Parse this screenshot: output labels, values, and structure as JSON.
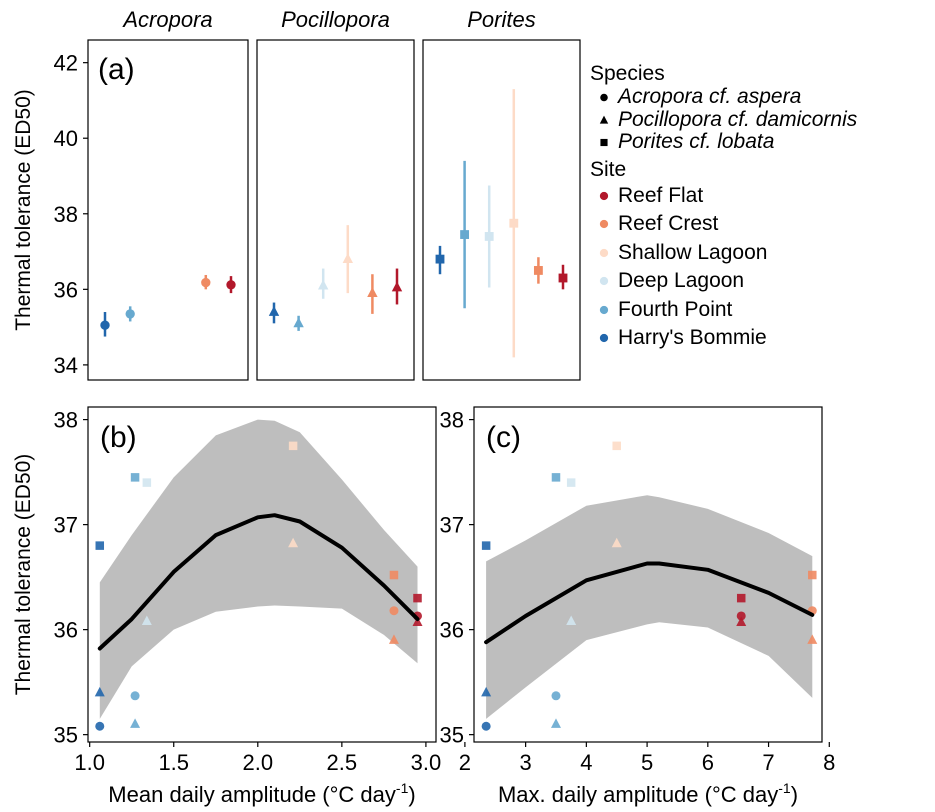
{
  "chart_data": [
    {
      "panel": "(a)",
      "type": "scatter",
      "facets": [
        "Acropora",
        "Pocillopora",
        "Porites"
      ],
      "ylabel": "Thermal tolerance (ED50)",
      "ylim": [
        33.6,
        42.6
      ],
      "yticks": [
        34,
        36,
        38,
        40,
        42
      ],
      "x_order": [
        "Harry's Bommie",
        "Fourth Point",
        "Deep Lagoon",
        "Shallow Lagoon",
        "Reef Crest",
        "Reef Flat"
      ],
      "series": [
        {
          "facet": "Acropora",
          "shape": "circle",
          "points": [
            {
              "site": "Harry's Bommie",
              "y": 35.05,
              "low": 34.75,
              "high": 35.4
            },
            {
              "site": "Fourth Point",
              "y": 35.35,
              "low": 35.15,
              "high": 35.55
            },
            {
              "site": "Reef Crest",
              "y": 36.18,
              "low": 36.0,
              "high": 36.38
            },
            {
              "site": "Reef Flat",
              "y": 36.12,
              "low": 35.9,
              "high": 36.35
            }
          ]
        },
        {
          "facet": "Pocillopora",
          "shape": "triangle",
          "points": [
            {
              "site": "Harry's Bommie",
              "y": 35.4,
              "low": 35.1,
              "high": 35.65
            },
            {
              "site": "Fourth Point",
              "y": 35.1,
              "low": 34.9,
              "high": 35.3
            },
            {
              "site": "Deep Lagoon",
              "y": 36.1,
              "low": 35.75,
              "high": 36.55
            },
            {
              "site": "Shallow Lagoon",
              "y": 36.8,
              "low": 35.9,
              "high": 37.7
            },
            {
              "site": "Reef Crest",
              "y": 35.9,
              "low": 35.35,
              "high": 36.4
            },
            {
              "site": "Reef Flat",
              "y": 36.05,
              "low": 35.6,
              "high": 36.55
            }
          ]
        },
        {
          "facet": "Porites",
          "shape": "square",
          "points": [
            {
              "site": "Harry's Bommie",
              "y": 36.8,
              "low": 36.4,
              "high": 37.15
            },
            {
              "site": "Fourth Point",
              "y": 37.45,
              "low": 35.5,
              "high": 39.4
            },
            {
              "site": "Deep Lagoon",
              "y": 37.4,
              "low": 36.05,
              "high": 38.75
            },
            {
              "site": "Shallow Lagoon",
              "y": 37.75,
              "low": 34.2,
              "high": 41.3
            },
            {
              "site": "Reef Crest",
              "y": 36.5,
              "low": 36.15,
              "high": 36.85
            },
            {
              "site": "Reef Flat",
              "y": 36.3,
              "low": 36.0,
              "high": 36.65
            }
          ]
        }
      ]
    },
    {
      "panel": "(b)",
      "type": "scatter",
      "xlabel_pre": "Mean daily amplitude (°C day",
      "xlabel_sup": "-1",
      "xlabel_post": ")",
      "ylabel": "Thermal tolerance (ED50)",
      "xlim": [
        0.99,
        3.06
      ],
      "ylim": [
        34.93,
        38.12
      ],
      "xticks": [
        1.0,
        1.5,
        2.0,
        2.5,
        3.0
      ],
      "xtick_labels": [
        "1.0",
        "1.5",
        "2.0",
        "2.5",
        "3.0"
      ],
      "yticks": [
        35,
        36,
        37,
        38
      ],
      "points": [
        {
          "x": 1.06,
          "y": 35.08,
          "site": "Harry's Bommie",
          "shape": "circle"
        },
        {
          "x": 1.06,
          "y": 35.4,
          "site": "Harry's Bommie",
          "shape": "triangle"
        },
        {
          "x": 1.06,
          "y": 36.8,
          "site": "Harry's Bommie",
          "shape": "square"
        },
        {
          "x": 1.27,
          "y": 35.37,
          "site": "Fourth Point",
          "shape": "circle"
        },
        {
          "x": 1.27,
          "y": 35.1,
          "site": "Fourth Point",
          "shape": "triangle"
        },
        {
          "x": 1.27,
          "y": 37.45,
          "site": "Fourth Point",
          "shape": "square"
        },
        {
          "x": 1.34,
          "y": 36.08,
          "site": "Deep Lagoon",
          "shape": "triangle"
        },
        {
          "x": 1.34,
          "y": 37.4,
          "site": "Deep Lagoon",
          "shape": "square"
        },
        {
          "x": 2.21,
          "y": 36.82,
          "site": "Shallow Lagoon",
          "shape": "triangle"
        },
        {
          "x": 2.21,
          "y": 37.75,
          "site": "Shallow Lagoon",
          "shape": "square"
        },
        {
          "x": 2.81,
          "y": 36.18,
          "site": "Reef Crest",
          "shape": "circle"
        },
        {
          "x": 2.81,
          "y": 35.9,
          "site": "Reef Crest",
          "shape": "triangle"
        },
        {
          "x": 2.81,
          "y": 36.52,
          "site": "Reef Crest",
          "shape": "square"
        },
        {
          "x": 2.95,
          "y": 36.13,
          "site": "Reef Flat",
          "shape": "circle"
        },
        {
          "x": 2.95,
          "y": 36.07,
          "site": "Reef Flat",
          "shape": "triangle"
        },
        {
          "x": 2.95,
          "y": 36.3,
          "site": "Reef Flat",
          "shape": "square"
        }
      ],
      "fit": {
        "x": [
          1.06,
          1.25,
          1.5,
          1.75,
          2.0,
          2.1,
          2.25,
          2.5,
          2.75,
          2.95
        ],
        "y": [
          35.82,
          36.1,
          36.55,
          36.9,
          37.07,
          37.09,
          37.03,
          36.78,
          36.42,
          36.1
        ],
        "upper": [
          36.45,
          36.9,
          37.45,
          37.85,
          38.0,
          37.99,
          37.88,
          37.43,
          36.95,
          36.6
        ],
        "lower": [
          35.15,
          35.65,
          36.0,
          36.17,
          36.22,
          36.23,
          36.22,
          36.2,
          35.95,
          35.68
        ]
      }
    },
    {
      "panel": "(c)",
      "type": "scatter",
      "xlabel_pre": "Max. daily amplitude (°C day",
      "xlabel_sup": "-1",
      "xlabel_post": ")",
      "xlim": [
        2.15,
        7.88
      ],
      "ylim": [
        34.93,
        38.12
      ],
      "xticks": [
        2,
        3,
        4,
        5,
        6,
        7,
        8
      ],
      "xtick_labels": [
        "2",
        "3",
        "4",
        "5",
        "6",
        "7",
        "8"
      ],
      "yticks": [
        35,
        36,
        37,
        38
      ],
      "points": [
        {
          "x": 2.35,
          "y": 35.08,
          "site": "Harry's Bommie",
          "shape": "circle"
        },
        {
          "x": 2.35,
          "y": 35.4,
          "site": "Harry's Bommie",
          "shape": "triangle"
        },
        {
          "x": 2.35,
          "y": 36.8,
          "site": "Harry's Bommie",
          "shape": "square"
        },
        {
          "x": 3.5,
          "y": 35.37,
          "site": "Fourth Point",
          "shape": "circle"
        },
        {
          "x": 3.5,
          "y": 35.1,
          "site": "Fourth Point",
          "shape": "triangle"
        },
        {
          "x": 3.5,
          "y": 37.45,
          "site": "Fourth Point",
          "shape": "square"
        },
        {
          "x": 3.75,
          "y": 36.08,
          "site": "Deep Lagoon",
          "shape": "triangle"
        },
        {
          "x": 3.75,
          "y": 37.4,
          "site": "Deep Lagoon",
          "shape": "square"
        },
        {
          "x": 4.5,
          "y": 36.82,
          "site": "Shallow Lagoon",
          "shape": "triangle"
        },
        {
          "x": 4.5,
          "y": 37.75,
          "site": "Shallow Lagoon",
          "shape": "square"
        },
        {
          "x": 6.55,
          "y": 36.13,
          "site": "Reef Flat",
          "shape": "circle"
        },
        {
          "x": 6.55,
          "y": 36.07,
          "site": "Reef Flat",
          "shape": "triangle"
        },
        {
          "x": 6.55,
          "y": 36.3,
          "site": "Reef Flat",
          "shape": "square"
        },
        {
          "x": 7.72,
          "y": 36.18,
          "site": "Reef Crest",
          "shape": "circle"
        },
        {
          "x": 7.72,
          "y": 35.9,
          "site": "Reef Crest",
          "shape": "triangle"
        },
        {
          "x": 7.72,
          "y": 36.52,
          "site": "Reef Crest",
          "shape": "square"
        }
      ],
      "fit": {
        "x": [
          2.35,
          3.0,
          4.0,
          5.0,
          5.2,
          6.0,
          7.0,
          7.72
        ],
        "y": [
          35.88,
          36.13,
          36.47,
          36.63,
          36.63,
          36.57,
          36.35,
          36.14
        ],
        "upper": [
          36.65,
          36.85,
          37.18,
          37.28,
          37.26,
          37.15,
          36.92,
          36.7
        ],
        "lower": [
          35.15,
          35.45,
          35.9,
          36.05,
          36.07,
          36.02,
          35.75,
          35.35
        ]
      }
    }
  ],
  "legend": {
    "species_title": "Species",
    "species": [
      {
        "label": "Acropora cf. aspera",
        "shape": "circle"
      },
      {
        "label": "Pocillopora cf. damicornis",
        "shape": "triangle"
      },
      {
        "label": "Porites cf. lobata",
        "shape": "square"
      }
    ],
    "site_title": "Site",
    "sites": [
      {
        "label": "Reef Flat",
        "color": "#b2182b"
      },
      {
        "label": "Reef Crest",
        "color": "#ef8a62"
      },
      {
        "label": "Shallow Lagoon",
        "color": "#fddbc7"
      },
      {
        "label": "Deep Lagoon",
        "color": "#d1e5f0"
      },
      {
        "label": "Fourth Point",
        "color": "#67a9cf"
      },
      {
        "label": "Harry's Bommie",
        "color": "#2166ac"
      }
    ]
  },
  "colors": {
    "Reef Flat": "#b2182b",
    "Reef Crest": "#ef8a62",
    "Shallow Lagoon": "#fddbc7",
    "Deep Lagoon": "#d1e5f0",
    "Fourth Point": "#67a9cf",
    "Harry's Bommie": "#2166ac",
    "ribbon": "#bebebe",
    "fit_line": "#000000"
  }
}
